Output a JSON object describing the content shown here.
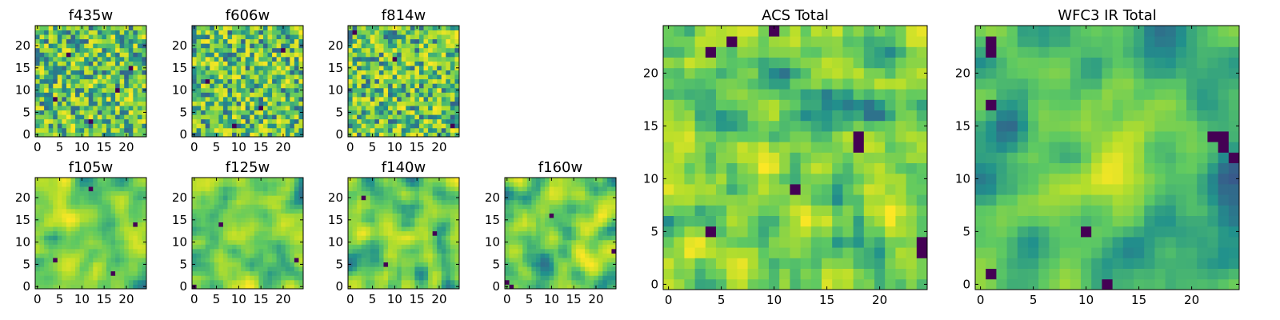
{
  "figure": {
    "colormap": [
      "#440154",
      "#3b528b",
      "#21918c",
      "#5ec962",
      "#b5de2b",
      "#fde725"
    ]
  },
  "chart_data": [
    {
      "type": "heatmap",
      "title": "f435w",
      "grid_size": 25,
      "xlim": [
        0,
        24
      ],
      "ylim": [
        0,
        24
      ],
      "xticks": [
        0,
        5,
        10,
        15,
        20
      ],
      "yticks": [
        0,
        5,
        10,
        15,
        20
      ],
      "pattern": "noise",
      "seed": 11,
      "low_pixels": [
        [
          4,
          8
        ],
        [
          18,
          10
        ],
        [
          12,
          3
        ],
        [
          21,
          15
        ],
        [
          7,
          18
        ]
      ]
    },
    {
      "type": "heatmap",
      "title": "f606w",
      "grid_size": 25,
      "xlim": [
        0,
        24
      ],
      "ylim": [
        0,
        24
      ],
      "xticks": [
        0,
        5,
        10,
        15,
        20
      ],
      "yticks": [
        0,
        5,
        10,
        15,
        20
      ],
      "pattern": "noise",
      "seed": 23,
      "low_pixels": [
        [
          3,
          12
        ],
        [
          15,
          6
        ],
        [
          20,
          19
        ],
        [
          9,
          2
        ]
      ]
    },
    {
      "type": "heatmap",
      "title": "f814w",
      "grid_size": 25,
      "xlim": [
        0,
        24
      ],
      "ylim": [
        0,
        24
      ],
      "xticks": [
        0,
        5,
        10,
        15,
        20
      ],
      "yticks": [
        0,
        5,
        10,
        15,
        20
      ],
      "pattern": "noise",
      "seed": 37,
      "low_pixels": [
        [
          1,
          23
        ],
        [
          23,
          2
        ],
        [
          10,
          17
        ]
      ]
    },
    {
      "type": "heatmap",
      "title": "f105w",
      "grid_size": 25,
      "xlim": [
        0,
        24
      ],
      "ylim": [
        0,
        24
      ],
      "xticks": [
        0,
        5,
        10,
        15,
        20
      ],
      "yticks": [
        0,
        5,
        10,
        15,
        20
      ],
      "pattern": "smooth",
      "seed": 41,
      "low_pixels": [
        [
          17,
          3
        ],
        [
          4,
          6
        ],
        [
          22,
          14
        ],
        [
          12,
          22
        ]
      ]
    },
    {
      "type": "heatmap",
      "title": "f125w",
      "grid_size": 25,
      "xlim": [
        0,
        24
      ],
      "ylim": [
        0,
        24
      ],
      "xticks": [
        0,
        5,
        10,
        15,
        20
      ],
      "yticks": [
        0,
        5,
        10,
        15,
        20
      ],
      "pattern": "smooth",
      "seed": 53,
      "low_pixels": [
        [
          0,
          0
        ],
        [
          23,
          6
        ],
        [
          6,
          14
        ]
      ]
    },
    {
      "type": "heatmap",
      "title": "f140w",
      "grid_size": 25,
      "xlim": [
        0,
        24
      ],
      "ylim": [
        0,
        24
      ],
      "xticks": [
        0,
        5,
        10,
        15,
        20
      ],
      "yticks": [
        0,
        5,
        10,
        15,
        20
      ],
      "pattern": "smooth",
      "seed": 67,
      "low_pixels": [
        [
          8,
          5
        ],
        [
          19,
          12
        ],
        [
          3,
          20
        ]
      ]
    },
    {
      "type": "heatmap",
      "title": "f160w",
      "grid_size": 25,
      "xlim": [
        0,
        24
      ],
      "ylim": [
        0,
        24
      ],
      "xticks": [
        0,
        5,
        10,
        15,
        20
      ],
      "yticks": [
        0,
        5,
        10,
        15,
        20
      ],
      "pattern": "smooth",
      "seed": 79,
      "low_pixels": [
        [
          0,
          1
        ],
        [
          1,
          0
        ],
        [
          24,
          8
        ],
        [
          10,
          16
        ]
      ]
    },
    {
      "type": "heatmap",
      "title": "ACS Total",
      "grid_size": 25,
      "xlim": [
        0,
        24
      ],
      "ylim": [
        0,
        24
      ],
      "xticks": [
        0,
        5,
        10,
        15,
        20
      ],
      "yticks": [
        0,
        5,
        10,
        15,
        20
      ],
      "pattern": "blocky",
      "seed": 97,
      "low_pixels": [
        [
          10,
          24
        ],
        [
          6,
          23
        ],
        [
          4,
          22
        ],
        [
          18,
          14
        ],
        [
          18,
          13
        ],
        [
          12,
          9
        ],
        [
          4,
          5
        ],
        [
          24,
          3
        ],
        [
          24,
          4
        ]
      ]
    },
    {
      "type": "heatmap",
      "title": "WFC3 IR Total",
      "grid_size": 25,
      "xlim": [
        0,
        24
      ],
      "ylim": [
        0,
        24
      ],
      "xticks": [
        0,
        5,
        10,
        15,
        20
      ],
      "yticks": [
        0,
        5,
        10,
        15,
        20
      ],
      "pattern": "blob",
      "seed": 113,
      "low_pixels": [
        [
          1,
          23
        ],
        [
          1,
          22
        ],
        [
          1,
          17
        ],
        [
          22,
          14
        ],
        [
          23,
          14
        ],
        [
          23,
          13
        ],
        [
          24,
          12
        ],
        [
          10,
          5
        ],
        [
          12,
          0
        ],
        [
          1,
          1
        ]
      ]
    }
  ]
}
